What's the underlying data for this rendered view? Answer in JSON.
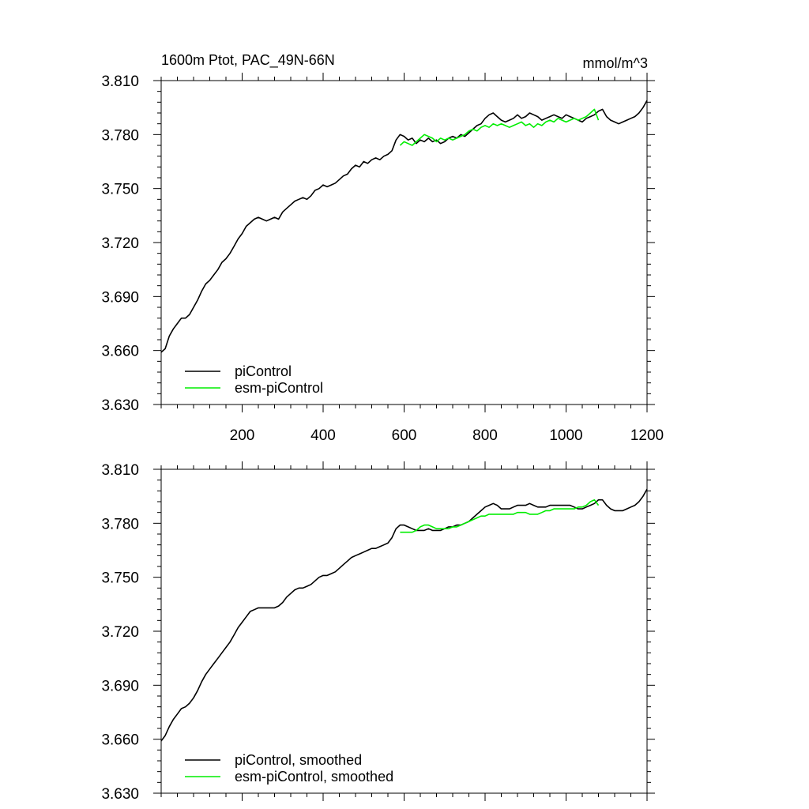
{
  "header": {
    "title": "1600m Ptot, PAC_49N-66N",
    "units": "mmol/m^3"
  },
  "colors": {
    "piControl": "#000000",
    "esm_piControl": "#00ee00"
  },
  "chart_data": [
    {
      "type": "line",
      "panel": "top",
      "xlim": [
        0,
        1200
      ],
      "ylim": [
        3.63,
        3.81
      ],
      "xticks": [
        "200",
        "400",
        "600",
        "800",
        "1000",
        "1200"
      ],
      "yticks": [
        "3.810",
        "3.780",
        "3.750",
        "3.720",
        "3.690",
        "3.660",
        "3.630"
      ],
      "legend_position": "bottom-left",
      "series": [
        {
          "name": "piControl",
          "x": [
            0,
            10,
            20,
            30,
            40,
            50,
            60,
            70,
            80,
            90,
            100,
            110,
            120,
            130,
            140,
            150,
            160,
            170,
            180,
            190,
            200,
            210,
            220,
            230,
            240,
            250,
            260,
            270,
            280,
            290,
            300,
            310,
            320,
            330,
            340,
            350,
            360,
            370,
            380,
            390,
            400,
            410,
            420,
            430,
            440,
            450,
            460,
            470,
            480,
            490,
            500,
            510,
            520,
            530,
            540,
            550,
            560,
            570,
            580,
            590,
            600,
            610,
            620,
            630,
            640,
            650,
            660,
            670,
            680,
            690,
            700,
            710,
            720,
            730,
            740,
            750,
            760,
            770,
            780,
            790,
            800,
            810,
            820,
            830,
            840,
            850,
            860,
            870,
            880,
            890,
            900,
            910,
            920,
            930,
            940,
            950,
            960,
            970,
            980,
            990,
            1000,
            1010,
            1020,
            1030,
            1040,
            1050,
            1060,
            1070,
            1080,
            1090,
            1100,
            1110,
            1120,
            1130,
            1140,
            1150,
            1160,
            1170,
            1180,
            1190,
            1200
          ],
          "values": [
            3.659,
            3.661,
            3.668,
            3.672,
            3.675,
            3.678,
            3.678,
            3.68,
            3.684,
            3.688,
            3.693,
            3.697,
            3.699,
            3.702,
            3.705,
            3.709,
            3.711,
            3.714,
            3.718,
            3.722,
            3.725,
            3.729,
            3.731,
            3.733,
            3.734,
            3.733,
            3.732,
            3.733,
            3.734,
            3.733,
            3.737,
            3.739,
            3.741,
            3.743,
            3.744,
            3.745,
            3.744,
            3.746,
            3.749,
            3.75,
            3.752,
            3.751,
            3.752,
            3.753,
            3.755,
            3.757,
            3.758,
            3.761,
            3.763,
            3.762,
            3.765,
            3.764,
            3.766,
            3.767,
            3.766,
            3.768,
            3.769,
            3.771,
            3.777,
            3.78,
            3.779,
            3.777,
            3.778,
            3.775,
            3.777,
            3.776,
            3.778,
            3.776,
            3.777,
            3.775,
            3.776,
            3.778,
            3.779,
            3.778,
            3.78,
            3.779,
            3.781,
            3.783,
            3.785,
            3.786,
            3.789,
            3.791,
            3.792,
            3.79,
            3.788,
            3.787,
            3.788,
            3.789,
            3.791,
            3.789,
            3.79,
            3.792,
            3.791,
            3.79,
            3.788,
            3.789,
            3.79,
            3.791,
            3.79,
            3.789,
            3.791,
            3.79,
            3.789,
            3.788,
            3.787,
            3.789,
            3.79,
            3.791,
            3.793,
            3.794,
            3.79,
            3.788,
            3.787,
            3.786,
            3.787,
            3.788,
            3.789,
            3.79,
            3.792,
            3.795,
            3.799
          ]
        },
        {
          "name": "esm-piControl",
          "x": [
            590,
            600,
            610,
            620,
            630,
            640,
            650,
            660,
            670,
            680,
            690,
            700,
            710,
            720,
            730,
            740,
            750,
            760,
            770,
            780,
            790,
            800,
            810,
            820,
            830,
            840,
            850,
            860,
            870,
            880,
            890,
            900,
            910,
            920,
            930,
            940,
            950,
            960,
            970,
            980,
            990,
            1000,
            1010,
            1020,
            1030,
            1040,
            1050,
            1060,
            1070,
            1080
          ],
          "values": [
            3.774,
            3.776,
            3.775,
            3.774,
            3.776,
            3.778,
            3.78,
            3.779,
            3.778,
            3.776,
            3.778,
            3.777,
            3.778,
            3.777,
            3.778,
            3.779,
            3.78,
            3.782,
            3.783,
            3.782,
            3.784,
            3.785,
            3.784,
            3.786,
            3.785,
            3.786,
            3.785,
            3.784,
            3.785,
            3.786,
            3.787,
            3.785,
            3.786,
            3.784,
            3.786,
            3.785,
            3.787,
            3.788,
            3.787,
            3.789,
            3.788,
            3.787,
            3.788,
            3.789,
            3.788,
            3.789,
            3.79,
            3.792,
            3.794,
            3.788
          ]
        }
      ]
    },
    {
      "type": "line",
      "panel": "bottom",
      "xlim": [
        0,
        1200
      ],
      "ylim": [
        3.63,
        3.81
      ],
      "yticks": [
        "3.810",
        "3.780",
        "3.750",
        "3.720",
        "3.690",
        "3.660",
        "3.630"
      ],
      "legend_position": "bottom-left",
      "series": [
        {
          "name": "piControl, smoothed",
          "x": [
            0,
            10,
            20,
            30,
            40,
            50,
            60,
            70,
            80,
            90,
            100,
            110,
            120,
            130,
            140,
            150,
            160,
            170,
            180,
            190,
            200,
            210,
            220,
            230,
            240,
            250,
            260,
            270,
            280,
            290,
            300,
            310,
            320,
            330,
            340,
            350,
            360,
            370,
            380,
            390,
            400,
            410,
            420,
            430,
            440,
            450,
            460,
            470,
            480,
            490,
            500,
            510,
            520,
            530,
            540,
            550,
            560,
            570,
            580,
            590,
            600,
            610,
            620,
            630,
            640,
            650,
            660,
            670,
            680,
            690,
            700,
            710,
            720,
            730,
            740,
            750,
            760,
            770,
            780,
            790,
            800,
            810,
            820,
            830,
            840,
            850,
            860,
            870,
            880,
            890,
            900,
            910,
            920,
            930,
            940,
            950,
            960,
            970,
            980,
            990,
            1000,
            1010,
            1020,
            1030,
            1040,
            1050,
            1060,
            1070,
            1080,
            1090,
            1100,
            1110,
            1120,
            1130,
            1140,
            1150,
            1160,
            1170,
            1180,
            1190,
            1200
          ],
          "values": [
            3.659,
            3.662,
            3.667,
            3.671,
            3.674,
            3.677,
            3.678,
            3.68,
            3.683,
            3.687,
            3.692,
            3.696,
            3.699,
            3.702,
            3.705,
            3.708,
            3.711,
            3.714,
            3.718,
            3.722,
            3.725,
            3.728,
            3.731,
            3.732,
            3.733,
            3.733,
            3.733,
            3.733,
            3.733,
            3.734,
            3.736,
            3.739,
            3.741,
            3.743,
            3.744,
            3.744,
            3.745,
            3.746,
            3.748,
            3.75,
            3.751,
            3.751,
            3.752,
            3.753,
            3.755,
            3.757,
            3.759,
            3.761,
            3.762,
            3.763,
            3.764,
            3.765,
            3.766,
            3.766,
            3.767,
            3.768,
            3.769,
            3.772,
            3.777,
            3.779,
            3.779,
            3.778,
            3.777,
            3.776,
            3.776,
            3.776,
            3.777,
            3.776,
            3.776,
            3.776,
            3.777,
            3.778,
            3.778,
            3.779,
            3.779,
            3.78,
            3.781,
            3.783,
            3.785,
            3.787,
            3.789,
            3.79,
            3.791,
            3.79,
            3.788,
            3.788,
            3.788,
            3.789,
            3.79,
            3.79,
            3.79,
            3.791,
            3.79,
            3.789,
            3.789,
            3.789,
            3.79,
            3.79,
            3.79,
            3.79,
            3.79,
            3.79,
            3.789,
            3.788,
            3.788,
            3.789,
            3.79,
            3.791,
            3.793,
            3.793,
            3.79,
            3.788,
            3.787,
            3.787,
            3.787,
            3.788,
            3.789,
            3.79,
            3.792,
            3.795,
            3.799
          ]
        },
        {
          "name": "esm-piControl, smoothed",
          "x": [
            590,
            600,
            610,
            620,
            630,
            640,
            650,
            660,
            670,
            680,
            690,
            700,
            710,
            720,
            730,
            740,
            750,
            760,
            770,
            780,
            790,
            800,
            810,
            820,
            830,
            840,
            850,
            860,
            870,
            880,
            890,
            900,
            910,
            920,
            930,
            940,
            950,
            960,
            970,
            980,
            990,
            1000,
            1010,
            1020,
            1030,
            1040,
            1050,
            1060,
            1070,
            1080
          ],
          "values": [
            3.775,
            3.775,
            3.775,
            3.775,
            3.776,
            3.778,
            3.779,
            3.779,
            3.778,
            3.777,
            3.777,
            3.777,
            3.777,
            3.778,
            3.778,
            3.779,
            3.78,
            3.781,
            3.782,
            3.783,
            3.784,
            3.784,
            3.785,
            3.785,
            3.785,
            3.785,
            3.785,
            3.785,
            3.785,
            3.786,
            3.786,
            3.786,
            3.785,
            3.785,
            3.785,
            3.786,
            3.787,
            3.787,
            3.788,
            3.788,
            3.788,
            3.788,
            3.788,
            3.788,
            3.789,
            3.789,
            3.79,
            3.792,
            3.793,
            3.79
          ]
        }
      ]
    }
  ]
}
